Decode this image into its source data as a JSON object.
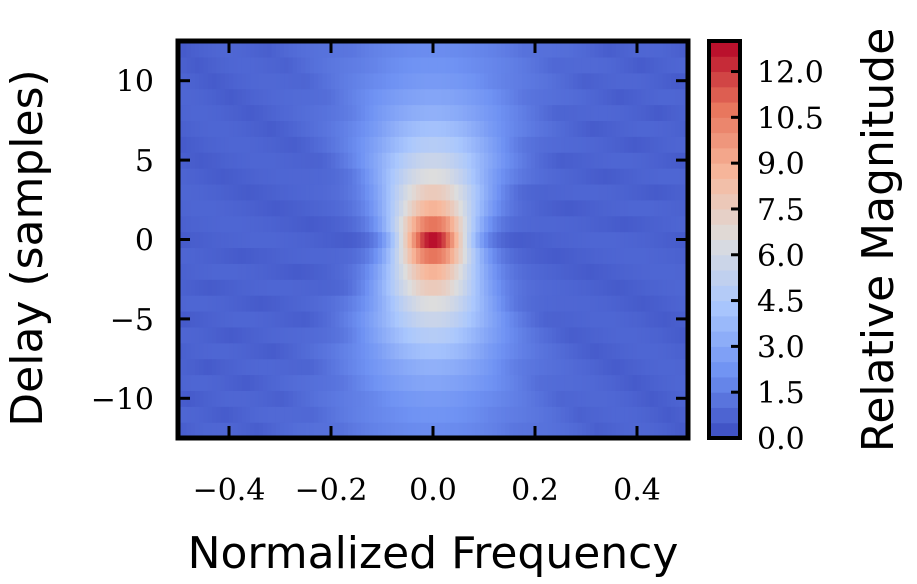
{
  "chart_data": {
    "type": "heatmap",
    "title": "",
    "xlabel": "Normalized Frequency",
    "ylabel": "Delay (samples)",
    "colorbar_label": "Relative Magnitude",
    "xlim": [
      -0.5,
      0.5
    ],
    "ylim": [
      -12.5,
      12.5
    ],
    "x_ticks": [
      -0.4,
      -0.2,
      0.0,
      0.2,
      0.4
    ],
    "x_tick_labels": [
      "−0.4",
      "−0.2",
      "0.0",
      "0.2",
      "0.4"
    ],
    "y_ticks": [
      -10,
      -5,
      0,
      5,
      10
    ],
    "y_tick_labels": [
      "−10",
      "−5",
      "0",
      "5",
      "10"
    ],
    "colorbar_range": [
      0,
      13
    ],
    "colorbar_ticks": [
      0.0,
      1.5,
      3.0,
      4.5,
      6.0,
      7.5,
      9.0,
      10.5,
      12.0
    ],
    "colorbar_tick_labels": [
      "0.0",
      "1.5",
      "3.0",
      "4.5",
      "6.0",
      "7.5",
      "9.0",
      "10.5",
      "12.0"
    ],
    "colormap": "coolwarm",
    "colormap_stops": [
      "#3b4cc0",
      "#6f92f3",
      "#aac7fd",
      "#dddddd",
      "#f7b89c",
      "#e7745b",
      "#b40426"
    ],
    "grid": false,
    "delays": [
      -12,
      -11,
      -10,
      -9,
      -8,
      -7,
      -6,
      -5,
      -4,
      -3,
      -2,
      -1,
      0,
      1,
      2,
      3,
      4,
      5,
      6,
      7,
      8,
      9,
      10,
      11,
      12
    ],
    "frequencies": [
      -0.5,
      -0.46,
      -0.42,
      -0.38,
      -0.34,
      -0.3,
      -0.26,
      -0.22,
      -0.18,
      -0.14,
      -0.1,
      -0.06,
      -0.02,
      0.02,
      0.06,
      0.1,
      0.14,
      0.18,
      0.22,
      0.26,
      0.3,
      0.34,
      0.38,
      0.42,
      0.46
    ],
    "row_profile": {
      "delay": [
        -12,
        -10,
        -8,
        -6,
        -4,
        -2,
        0,
        2,
        4,
        6,
        8,
        10,
        12
      ],
      "peak_magnitude_at_zero_frequency": [
        2.0,
        2.5,
        3.4,
        4.8,
        6.5,
        8.8,
        12.8,
        8.8,
        6.5,
        4.8,
        3.4,
        2.5,
        2.0
      ]
    },
    "peak": {
      "frequency": 0.0,
      "delay": 0,
      "magnitude": 12.8
    }
  }
}
